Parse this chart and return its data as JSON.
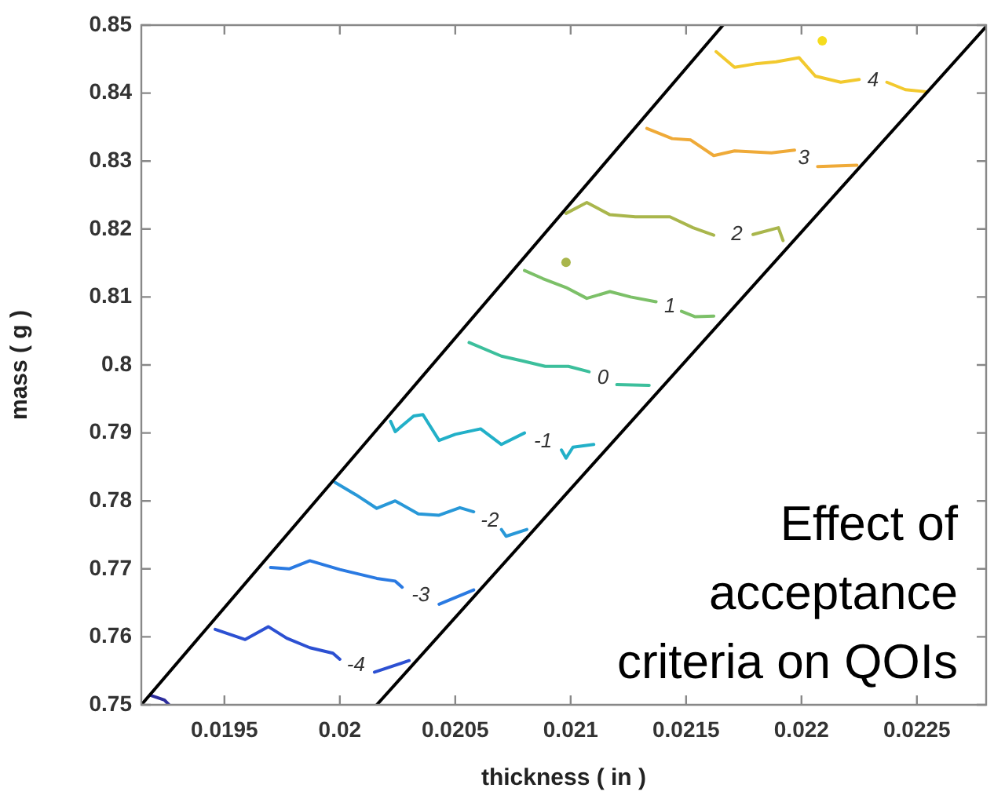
{
  "chart_data": {
    "type": "line",
    "xlabel": "thickness ( in )",
    "ylabel": "mass ( g )",
    "xlim": [
      0.01914,
      0.0228
    ],
    "ylim": [
      0.75,
      0.85
    ],
    "xticks": [
      0.0195,
      0.02,
      0.0205,
      0.021,
      0.0215,
      0.022,
      0.0225
    ],
    "yticks": [
      0.75,
      0.76,
      0.77,
      0.78,
      0.79,
      0.8,
      0.81,
      0.82,
      0.83,
      0.84,
      0.85
    ],
    "marker": "none",
    "series": [
      {
        "color": "#000000",
        "x": [
          0.01914,
          0.02166
        ],
        "values": [
          0.75,
          0.85
        ]
      },
      {
        "color": "#000000",
        "x": [
          0.02016,
          0.0228
        ],
        "values": [
          0.75,
          0.8498
        ]
      },
      {
        "name": "4",
        "color": "#f2c92e",
        "x": [
          0.02163,
          0.02171,
          0.0218,
          0.02189,
          0.02199,
          0.02206,
          0.02217,
          0.02225,
          0.02231,
          0.02237,
          0.02245,
          0.02254
        ],
        "values": [
          0.8461,
          0.8438,
          0.8443,
          0.8446,
          0.8452,
          0.8425,
          0.8416,
          0.842,
          null,
          0.8416,
          0.8405,
          0.8402
        ]
      },
      {
        "type": "scatter",
        "marker": "circle",
        "color": "#f5dc1e",
        "x": [
          0.02209
        ],
        "values": [
          0.8477
        ]
      },
      {
        "name": "3",
        "color": "#efaa38",
        "x": [
          0.02133,
          0.02144,
          0.02152,
          0.02162,
          0.02171,
          0.02187,
          0.02197,
          0.02201,
          0.02207,
          0.02224
        ],
        "values": [
          0.8348,
          0.8333,
          0.8331,
          0.8308,
          0.8315,
          0.8312,
          0.8316,
          null,
          0.8292,
          0.8294
        ]
      },
      {
        "name": "2",
        "color": "#a9b64c",
        "x": [
          0.02098,
          0.02107,
          0.02117,
          0.02128,
          0.02143,
          0.02153,
          0.02162,
          0.02172,
          0.02179,
          0.0219,
          0.02192
        ],
        "values": [
          0.8223,
          0.8239,
          0.8221,
          0.8218,
          0.8218,
          0.8202,
          0.8191,
          null,
          0.8192,
          0.8202,
          0.8183
        ]
      },
      {
        "type": "scatter",
        "marker": "circle",
        "color": "#a9b64c",
        "x": [
          0.02098
        ],
        "values": [
          0.8151
        ]
      },
      {
        "name": "1",
        "color": "#7cc068",
        "x": [
          0.0208,
          0.02088,
          0.02098,
          0.02107,
          0.02117,
          0.02126,
          0.02137,
          0.02143,
          0.02148,
          0.02154,
          0.02162
        ],
        "values": [
          0.8139,
          0.8127,
          0.8114,
          0.8098,
          0.8108,
          0.81,
          0.8093,
          null,
          0.8079,
          0.8071,
          0.8072
        ]
      },
      {
        "name": "0",
        "color": "#3cbf9c",
        "x": [
          0.02056,
          0.0207,
          0.02079,
          0.02089,
          0.02099,
          0.02108,
          0.02114,
          0.0212,
          0.02134
        ],
        "values": [
          0.8033,
          0.8013,
          0.8006,
          0.7998,
          0.7998,
          0.799,
          null,
          0.7971,
          0.797
        ]
      },
      {
        "name": "-1",
        "color": "#22b0c8",
        "x": [
          0.02022,
          0.02024,
          0.02032,
          0.02036,
          0.02043,
          0.0205,
          0.02061,
          0.0207,
          0.0208,
          0.02088,
          0.02096,
          0.02098,
          0.02101,
          0.0211
        ],
        "values": [
          0.7917,
          0.7902,
          0.7925,
          0.7927,
          0.7889,
          0.7898,
          0.7906,
          0.7883,
          0.79,
          null,
          0.7875,
          0.7863,
          0.7879,
          0.7883
        ]
      },
      {
        "name": "-2",
        "color": "#2898d8",
        "x": [
          0.01998,
          0.02007,
          0.02016,
          0.02024,
          0.02034,
          0.02043,
          0.02052,
          0.02058,
          0.02065,
          0.0207,
          0.02072,
          0.02081
        ],
        "values": [
          0.7827,
          0.7809,
          0.7789,
          0.78,
          0.7781,
          0.7779,
          0.779,
          0.7784,
          null,
          0.7758,
          0.7748,
          0.7758
        ]
      },
      {
        "name": "-3",
        "color": "#2a7ae2",
        "x": [
          0.0197,
          0.01978,
          0.01987,
          0.02,
          0.02016,
          0.02024,
          0.02027,
          0.02035,
          0.02043,
          0.02058
        ],
        "values": [
          0.7702,
          0.77,
          0.7712,
          0.7699,
          0.7686,
          0.7682,
          0.7673,
          null,
          0.7648,
          0.7669
        ]
      },
      {
        "name": "-4",
        "color": "#2c50d2",
        "x": [
          0.01946,
          0.01959,
          0.01969,
          0.01977,
          0.01987,
          0.01997,
          0.02,
          0.02007,
          0.02015,
          0.0203
        ],
        "values": [
          0.7611,
          0.7596,
          0.7615,
          0.7598,
          0.7584,
          0.7576,
          0.7567,
          null,
          0.7548,
          0.7565
        ]
      },
      {
        "color": "#2c2c9c",
        "x": [
          0.01918,
          0.01924,
          0.01926
        ],
        "values": [
          0.7514,
          0.7507,
          0.75
        ]
      }
    ],
    "annotations": [
      "Effect of acceptance criteria on QOIs"
    ]
  }
}
